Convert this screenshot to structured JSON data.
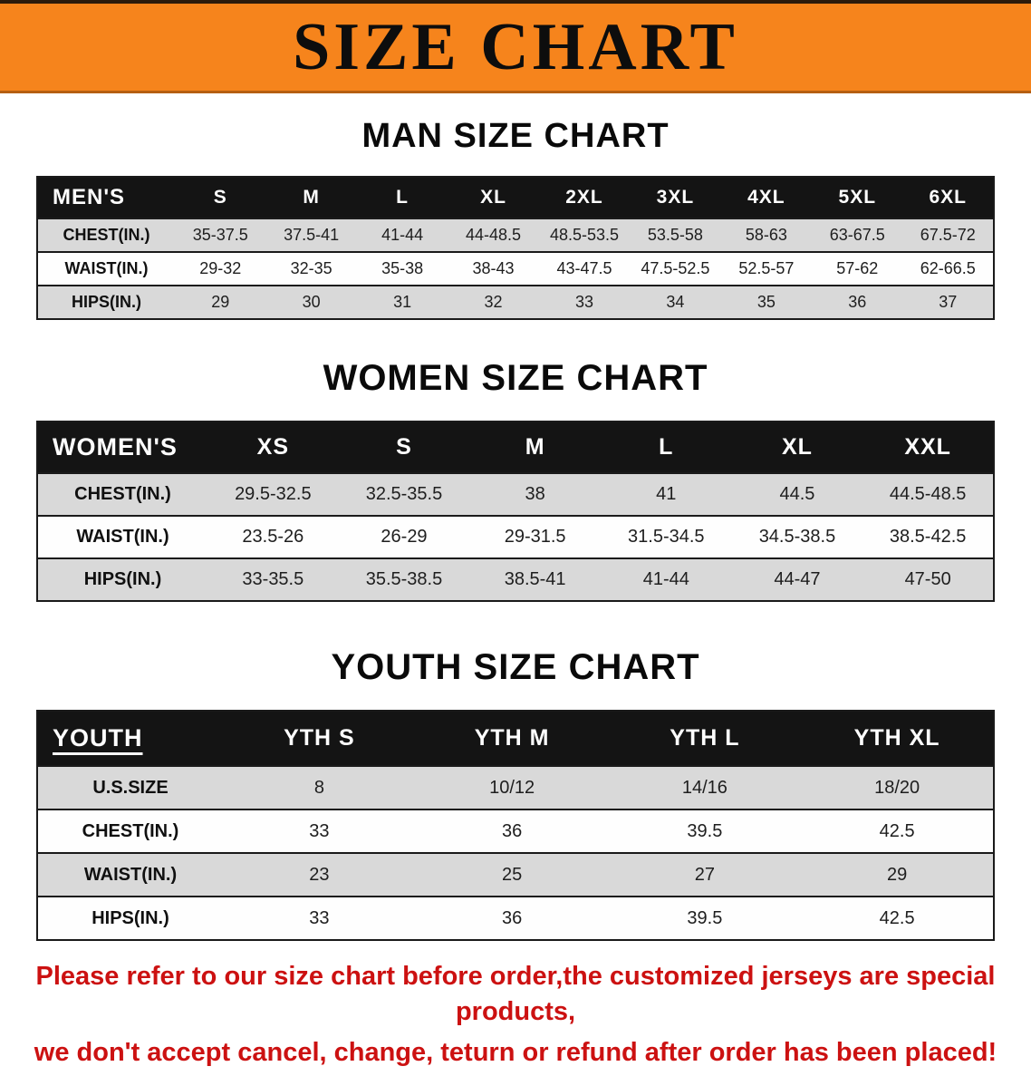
{
  "banner": {
    "title": "SIZE CHART",
    "bg_color": "#f6841c"
  },
  "sections": [
    {
      "id": "men",
      "heading": "MAN SIZE CHART",
      "table": {
        "header": [
          "MEN'S",
          "S",
          "M",
          "L",
          "XL",
          "2XL",
          "3XL",
          "4XL",
          "5XL",
          "6XL"
        ],
        "rows": [
          {
            "label": "CHEST(IN.)",
            "values": [
              "35-37.5",
              "37.5-41",
              "41-44",
              "44-48.5",
              "48.5-53.5",
              "53.5-58",
              "58-63",
              "63-67.5",
              "67.5-72"
            ]
          },
          {
            "label": "WAIST(IN.)",
            "values": [
              "29-32",
              "32-35",
              "35-38",
              "38-43",
              "43-47.5",
              "47.5-52.5",
              "52.5-57",
              "57-62",
              "62-66.5"
            ]
          },
          {
            "label": "HIPS(IN.)",
            "values": [
              "29",
              "30",
              "31",
              "32",
              "33",
              "34",
              "35",
              "36",
              "37"
            ]
          }
        ]
      }
    },
    {
      "id": "women",
      "heading": "WOMEN SIZE CHART",
      "table": {
        "header": [
          "WOMEN'S",
          "XS",
          "S",
          "M",
          "L",
          "XL",
          "XXL"
        ],
        "rows": [
          {
            "label": "CHEST(IN.)",
            "values": [
              "29.5-32.5",
              "32.5-35.5",
              "38",
              "41",
              "44.5",
              "44.5-48.5"
            ]
          },
          {
            "label": "WAIST(IN.)",
            "values": [
              "23.5-26",
              "26-29",
              "29-31.5",
              "31.5-34.5",
              "34.5-38.5",
              "38.5-42.5"
            ]
          },
          {
            "label": "HIPS(IN.)",
            "values": [
              "33-35.5",
              "35.5-38.5",
              "38.5-41",
              "41-44",
              "44-47",
              "47-50"
            ]
          }
        ]
      }
    },
    {
      "id": "youth",
      "heading": "YOUTH SIZE CHART",
      "table": {
        "header": [
          "YOUTH",
          "YTH S",
          "YTH M",
          "YTH L",
          "YTH XL"
        ],
        "rows": [
          {
            "label": "U.S.SIZE",
            "values": [
              "8",
              "10/12",
              "14/16",
              "18/20"
            ]
          },
          {
            "label": "CHEST(IN.)",
            "values": [
              "33",
              "36",
              "39.5",
              "42.5"
            ]
          },
          {
            "label": "WAIST(IN.)",
            "values": [
              "23",
              "25",
              "27",
              "29"
            ]
          },
          {
            "label": "HIPS(IN.)",
            "values": [
              "33",
              "36",
              "39.5",
              "42.5"
            ]
          }
        ]
      }
    }
  ],
  "notice": {
    "line1": "Please refer to our size chart before order,the customized jerseys are special products,",
    "line2": "we don't accept cancel, change, teturn or refund after order has been placed!",
    "color": "#cc1111"
  }
}
